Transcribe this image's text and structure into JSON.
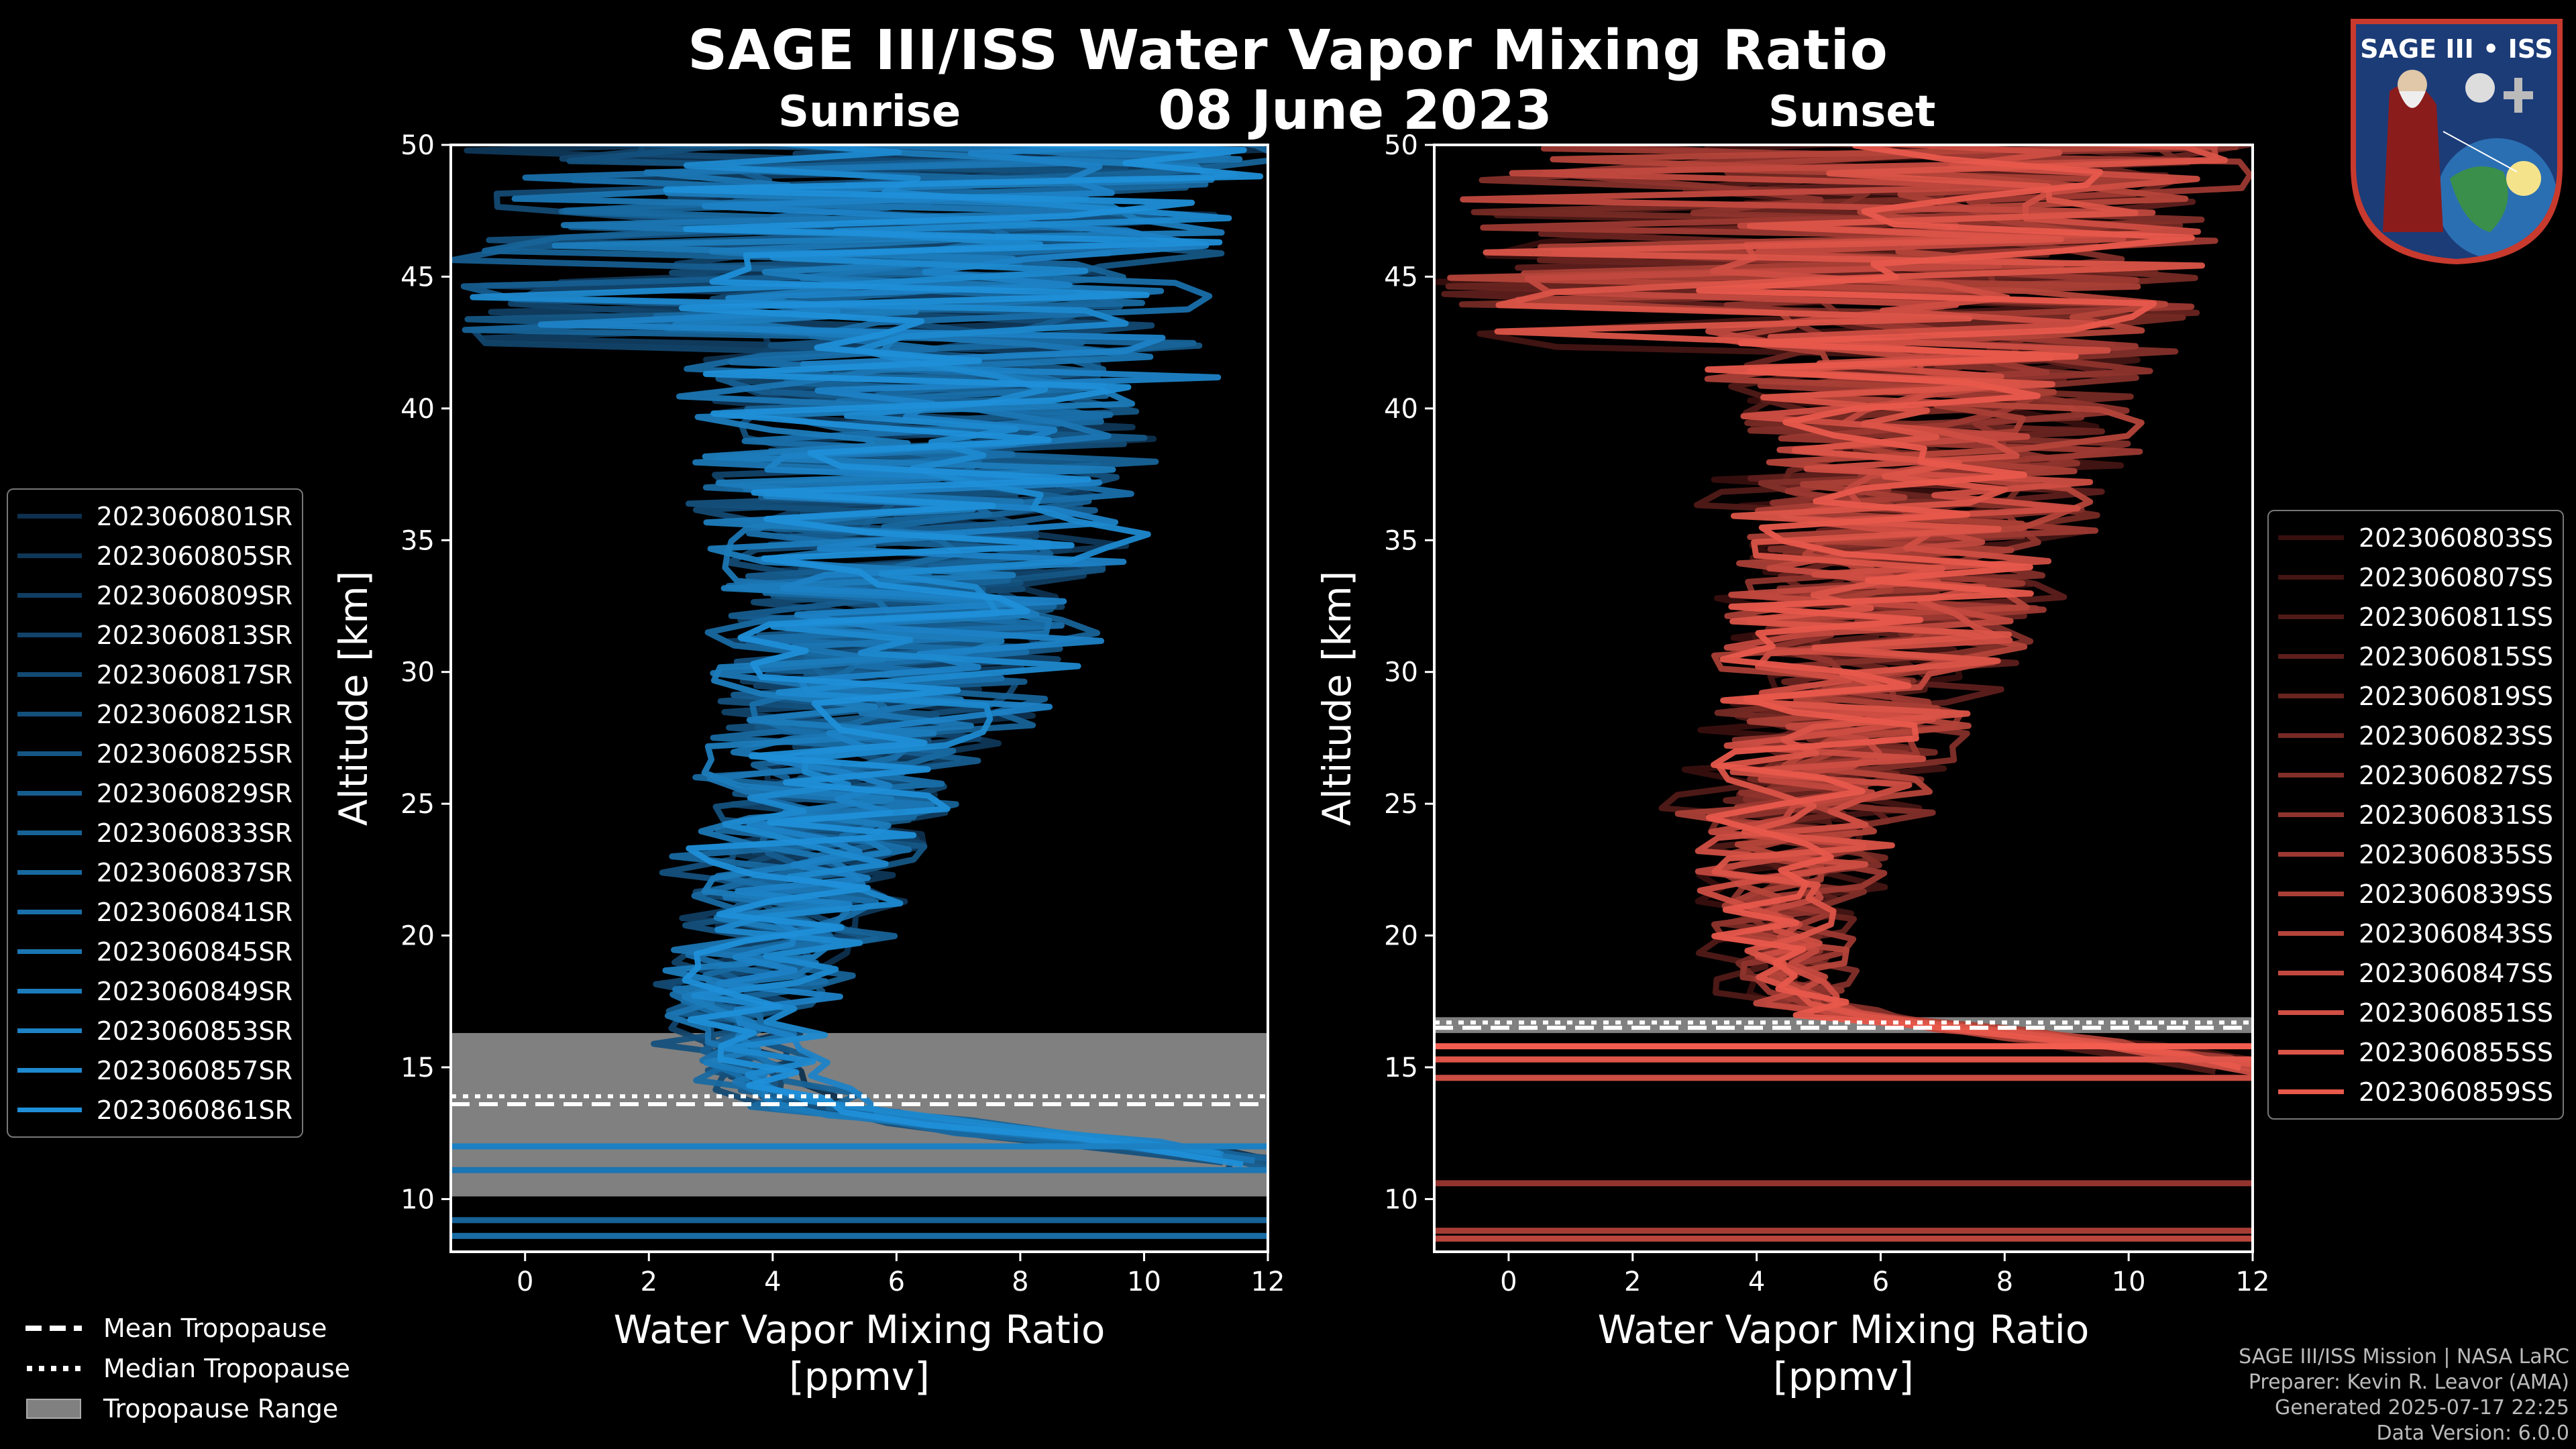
{
  "title": "SAGE III/ISS Water Vapor Mixing Ratio",
  "date": "08 June 2023",
  "panels": {
    "sunrise": {
      "title": "Sunrise",
      "xlabel": "Water Vapor Mixing Ratio",
      "xunit": "[ppmv]",
      "ylabel": "Altitude [km]"
    },
    "sunset": {
      "title": "Sunset",
      "xlabel": "Water Vapor Mixing Ratio",
      "xunit": "[ppmv]",
      "ylabel": "Altitude [km]"
    }
  },
  "legend_sunrise": [
    "2023060801SR",
    "2023060805SR",
    "2023060809SR",
    "2023060813SR",
    "2023060817SR",
    "2023060821SR",
    "2023060825SR",
    "2023060829SR",
    "2023060833SR",
    "2023060837SR",
    "2023060841SR",
    "2023060845SR",
    "2023060849SR",
    "2023060853SR",
    "2023060857SR",
    "2023060861SR"
  ],
  "legend_sunset": [
    "2023060803SS",
    "2023060807SS",
    "2023060811SS",
    "2023060815SS",
    "2023060819SS",
    "2023060823SS",
    "2023060827SS",
    "2023060831SS",
    "2023060835SS",
    "2023060839SS",
    "2023060843SS",
    "2023060847SS",
    "2023060851SS",
    "2023060855SS",
    "2023060859SS"
  ],
  "tropopause_legend": {
    "mean": "Mean Tropopause",
    "median": "Median Tropopause",
    "range": "Tropopause Range"
  },
  "credits": {
    "line1": "SAGE III/ISS Mission | NASA LaRC",
    "line2": "Preparer: Kevin R. Leavor (AMA)",
    "line3": "Generated 2025-07-17 22:25",
    "line4": "Data Version: 6.0.0"
  },
  "logo": {
    "text_top": "SAGE III • ISS"
  },
  "colors": {
    "sunrise": "#1f8fd8",
    "sunset": "#e8594c",
    "range": "#808080"
  },
  "chart_data": [
    {
      "type": "line",
      "title": "Sunrise",
      "xlabel": "Water Vapor Mixing Ratio [ppmv]",
      "ylabel": "Altitude [km]",
      "xlim": [
        -1.2,
        12
      ],
      "ylim": [
        8,
        50
      ],
      "xticks": [
        0,
        2,
        4,
        6,
        8,
        10,
        12
      ],
      "yticks": [
        10,
        15,
        20,
        25,
        30,
        35,
        40,
        45,
        50
      ],
      "series_count": 16,
      "mean_profile": [
        {
          "alt": 11.5,
          "x": 12
        },
        {
          "alt": 12.5,
          "x": 8
        },
        {
          "alt": 13.5,
          "x": 4.5
        },
        {
          "alt": 15,
          "x": 3.6
        },
        {
          "alt": 17,
          "x": 3.4
        },
        {
          "alt": 19,
          "x": 3.9
        },
        {
          "alt": 22,
          "x": 4.4
        },
        {
          "alt": 25,
          "x": 5.0
        },
        {
          "alt": 28,
          "x": 5.6
        },
        {
          "alt": 31,
          "x": 6.1
        },
        {
          "alt": 34,
          "x": 6.4
        },
        {
          "alt": 38,
          "x": 6.6
        },
        {
          "alt": 42,
          "x": 6.8
        },
        {
          "alt": 46,
          "x": 7.0
        },
        {
          "alt": 49,
          "x": 7.2
        }
      ],
      "tropopause": {
        "mean": 13.6,
        "median": 13.9,
        "range": [
          10.1,
          16.3
        ]
      }
    },
    {
      "type": "line",
      "title": "Sunset",
      "xlabel": "Water Vapor Mixing Ratio [ppmv]",
      "ylabel": "Altitude [km]",
      "xlim": [
        -1.2,
        12
      ],
      "ylim": [
        8,
        50
      ],
      "xticks": [
        0,
        2,
        4,
        6,
        8,
        10,
        12
      ],
      "yticks": [
        10,
        15,
        20,
        25,
        30,
        35,
        40,
        45,
        50
      ],
      "series_count": 15,
      "mean_profile": [
        {
          "alt": 15,
          "x": 12
        },
        {
          "alt": 16,
          "x": 9
        },
        {
          "alt": 17,
          "x": 5.0
        },
        {
          "alt": 18,
          "x": 4.3
        },
        {
          "alt": 20,
          "x": 4.2
        },
        {
          "alt": 23,
          "x": 4.4
        },
        {
          "alt": 26,
          "x": 4.8
        },
        {
          "alt": 29,
          "x": 5.3
        },
        {
          "alt": 32,
          "x": 5.8
        },
        {
          "alt": 35,
          "x": 6.2
        },
        {
          "alt": 38,
          "x": 6.5
        },
        {
          "alt": 42,
          "x": 6.8
        },
        {
          "alt": 46,
          "x": 7.0
        },
        {
          "alt": 49,
          "x": 7.2
        }
      ],
      "tropopause": {
        "mean": 16.5,
        "median": 16.7,
        "range": [
          16.3,
          16.9
        ]
      }
    }
  ]
}
